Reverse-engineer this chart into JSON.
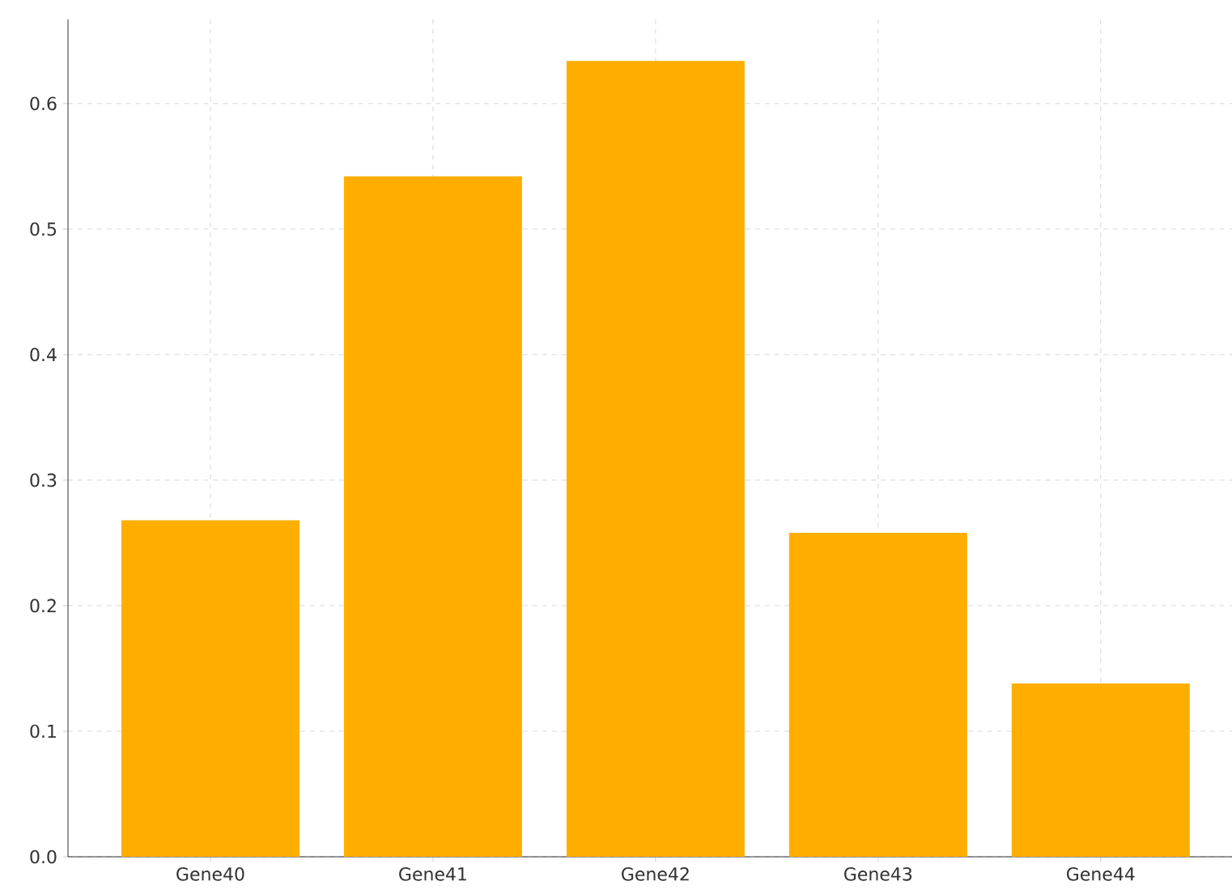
{
  "chart_data": {
    "type": "bar",
    "categories": [
      "Gene40",
      "Gene41",
      "Gene42",
      "Gene43",
      "Gene44"
    ],
    "values": [
      0.268,
      0.542,
      0.634,
      0.258,
      0.138
    ],
    "color": "#ffae00",
    "ylim": [
      0,
      0.667
    ],
    "yticks": [
      {
        "value": 0,
        "label": "0.0"
      },
      0.1,
      0.2,
      0.3,
      0.4,
      0.5,
      0.6
    ],
    "grid": true
  }
}
